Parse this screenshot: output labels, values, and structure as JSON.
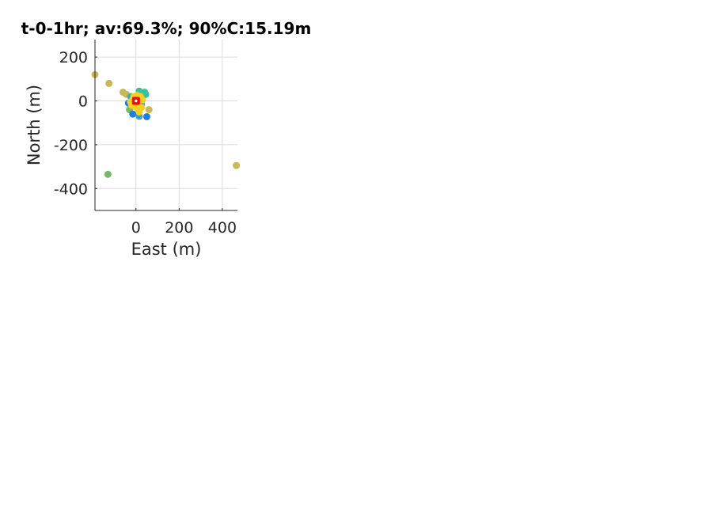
{
  "chart_data": {
    "type": "scatter",
    "title": "t-0-1hr; av:69.3%; 90%C:15.19m",
    "xlabel": "East (m)",
    "ylabel": "North (m)",
    "xlim": [
      -190,
      470
    ],
    "ylim": [
      -500,
      280
    ],
    "xticks": [
      0,
      200,
      400
    ],
    "yticks": [
      200,
      0,
      -200,
      -400
    ],
    "grid": true,
    "series": [
      {
        "color": "#c8b85a",
        "points": [
          [
            -190,
            120
          ],
          [
            -125,
            80
          ],
          [
            -60,
            40
          ],
          [
            -45,
            30
          ],
          [
            60,
            -40
          ],
          [
            465,
            -295
          ]
        ]
      },
      {
        "color": "#78b86a",
        "points": [
          [
            -130,
            -335
          ],
          [
            -30,
            -40
          ],
          [
            10,
            -55
          ]
        ]
      },
      {
        "color": "#3cbf9a",
        "points": [
          [
            40,
            40
          ],
          [
            45,
            30
          ],
          [
            15,
            45
          ],
          [
            -25,
            20
          ],
          [
            30,
            15
          ]
        ]
      },
      {
        "color": "#1f7ee0",
        "points": [
          [
            50,
            -72
          ],
          [
            -15,
            -60
          ],
          [
            -35,
            -10
          ],
          [
            20,
            -25
          ]
        ]
      },
      {
        "color": "#3aa0c8",
        "points": [
          [
            15,
            -70
          ],
          [
            -20,
            15
          ],
          [
            25,
            -15
          ]
        ]
      },
      {
        "color": "#f5d020",
        "points": [
          [
            0,
            0
          ],
          [
            -10,
            20
          ],
          [
            15,
            10
          ],
          [
            -20,
            -20
          ],
          [
            10,
            -40
          ],
          [
            25,
            -30
          ],
          [
            -15,
            5
          ],
          [
            5,
            25
          ],
          [
            20,
            20
          ],
          [
            -5,
            -25
          ],
          [
            15,
            -50
          ],
          [
            -25,
            -5
          ],
          [
            30,
            5
          ],
          [
            5,
            -10
          ]
        ]
      },
      {
        "color": "#ff0000",
        "points": [
          [
            0,
            0
          ]
        ]
      }
    ]
  }
}
